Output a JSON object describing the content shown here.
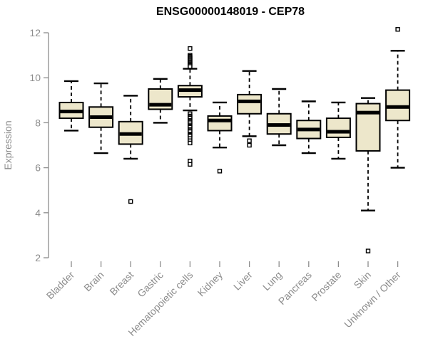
{
  "chart_data": {
    "type": "box",
    "title": "ENSG00000148019 - CEP78",
    "xlabel": "",
    "ylabel": "Expression",
    "ylim": [
      2,
      12
    ],
    "yticks": [
      2,
      4,
      6,
      8,
      10,
      12
    ],
    "grid": false,
    "legend": "none",
    "categories": [
      "Bladder",
      "Brain",
      "Breast",
      "Gastric",
      "Hematopoietic cells",
      "Kidney",
      "Liver",
      "Lung",
      "Pancreas",
      "Prostate",
      "Skin",
      "Unknown / Other"
    ],
    "series": [
      {
        "name": "Bladder",
        "whisker_low": 7.65,
        "q1": 8.2,
        "median": 8.5,
        "q3": 8.9,
        "whisker_high": 9.85,
        "outliers": []
      },
      {
        "name": "Brain",
        "whisker_low": 6.65,
        "q1": 7.8,
        "median": 8.25,
        "q3": 8.7,
        "whisker_high": 9.75,
        "outliers": []
      },
      {
        "name": "Breast",
        "whisker_low": 6.4,
        "q1": 7.05,
        "median": 7.5,
        "q3": 8.05,
        "whisker_high": 9.2,
        "outliers": [
          4.5
        ]
      },
      {
        "name": "Gastric",
        "whisker_low": 8.0,
        "q1": 8.6,
        "median": 8.8,
        "q3": 9.5,
        "whisker_high": 9.95,
        "outliers": []
      },
      {
        "name": "Hematopoietic cells",
        "whisker_low": 8.55,
        "q1": 9.15,
        "median": 9.45,
        "q3": 9.65,
        "whisker_high": 10.4,
        "outliers": [
          11.3,
          11.0,
          10.95,
          10.9,
          10.85,
          10.8,
          10.75,
          10.7,
          10.65,
          10.6,
          10.55,
          10.5,
          8.4,
          8.3,
          8.25,
          8.2,
          8.1,
          8.05,
          8.0,
          7.9,
          7.85,
          7.8,
          7.7,
          7.65,
          7.6,
          7.5,
          7.45,
          7.4,
          7.3,
          7.2,
          7.1,
          6.3,
          6.15
        ]
      },
      {
        "name": "Kidney",
        "whisker_low": 6.9,
        "q1": 7.65,
        "median": 8.1,
        "q3": 8.3,
        "whisker_high": 8.9,
        "outliers": [
          5.85
        ]
      },
      {
        "name": "Liver",
        "whisker_low": 7.4,
        "q1": 8.4,
        "median": 8.95,
        "q3": 9.25,
        "whisker_high": 10.3,
        "outliers": [
          7.2,
          7.0
        ]
      },
      {
        "name": "Lung",
        "whisker_low": 7.0,
        "q1": 7.5,
        "median": 7.9,
        "q3": 8.4,
        "whisker_high": 9.5,
        "outliers": []
      },
      {
        "name": "Pancreas",
        "whisker_low": 6.65,
        "q1": 7.3,
        "median": 7.7,
        "q3": 8.1,
        "whisker_high": 8.95,
        "outliers": []
      },
      {
        "name": "Prostate",
        "whisker_low": 6.4,
        "q1": 7.35,
        "median": 7.6,
        "q3": 8.2,
        "whisker_high": 8.9,
        "outliers": []
      },
      {
        "name": "Skin",
        "whisker_low": 4.1,
        "q1": 6.75,
        "median": 8.45,
        "q3": 8.85,
        "whisker_high": 9.1,
        "outliers": [
          2.3
        ]
      },
      {
        "name": "Unknown / Other",
        "whisker_low": 6.0,
        "q1": 8.1,
        "median": 8.7,
        "q3": 9.45,
        "whisker_high": 11.2,
        "outliers": [
          12.15
        ]
      }
    ],
    "colors": {
      "box_fill": "#EDE7CB",
      "box_stroke": "#000000",
      "median_color": "#000000",
      "whisker_color": "#000000",
      "outlier_stroke": "#000000",
      "outlier_fill": "#ffffff",
      "axis_color": "#8C8C8C",
      "tick_label_color": "#8C8C8C",
      "title_color": "#000000",
      "background": "#ffffff"
    }
  }
}
